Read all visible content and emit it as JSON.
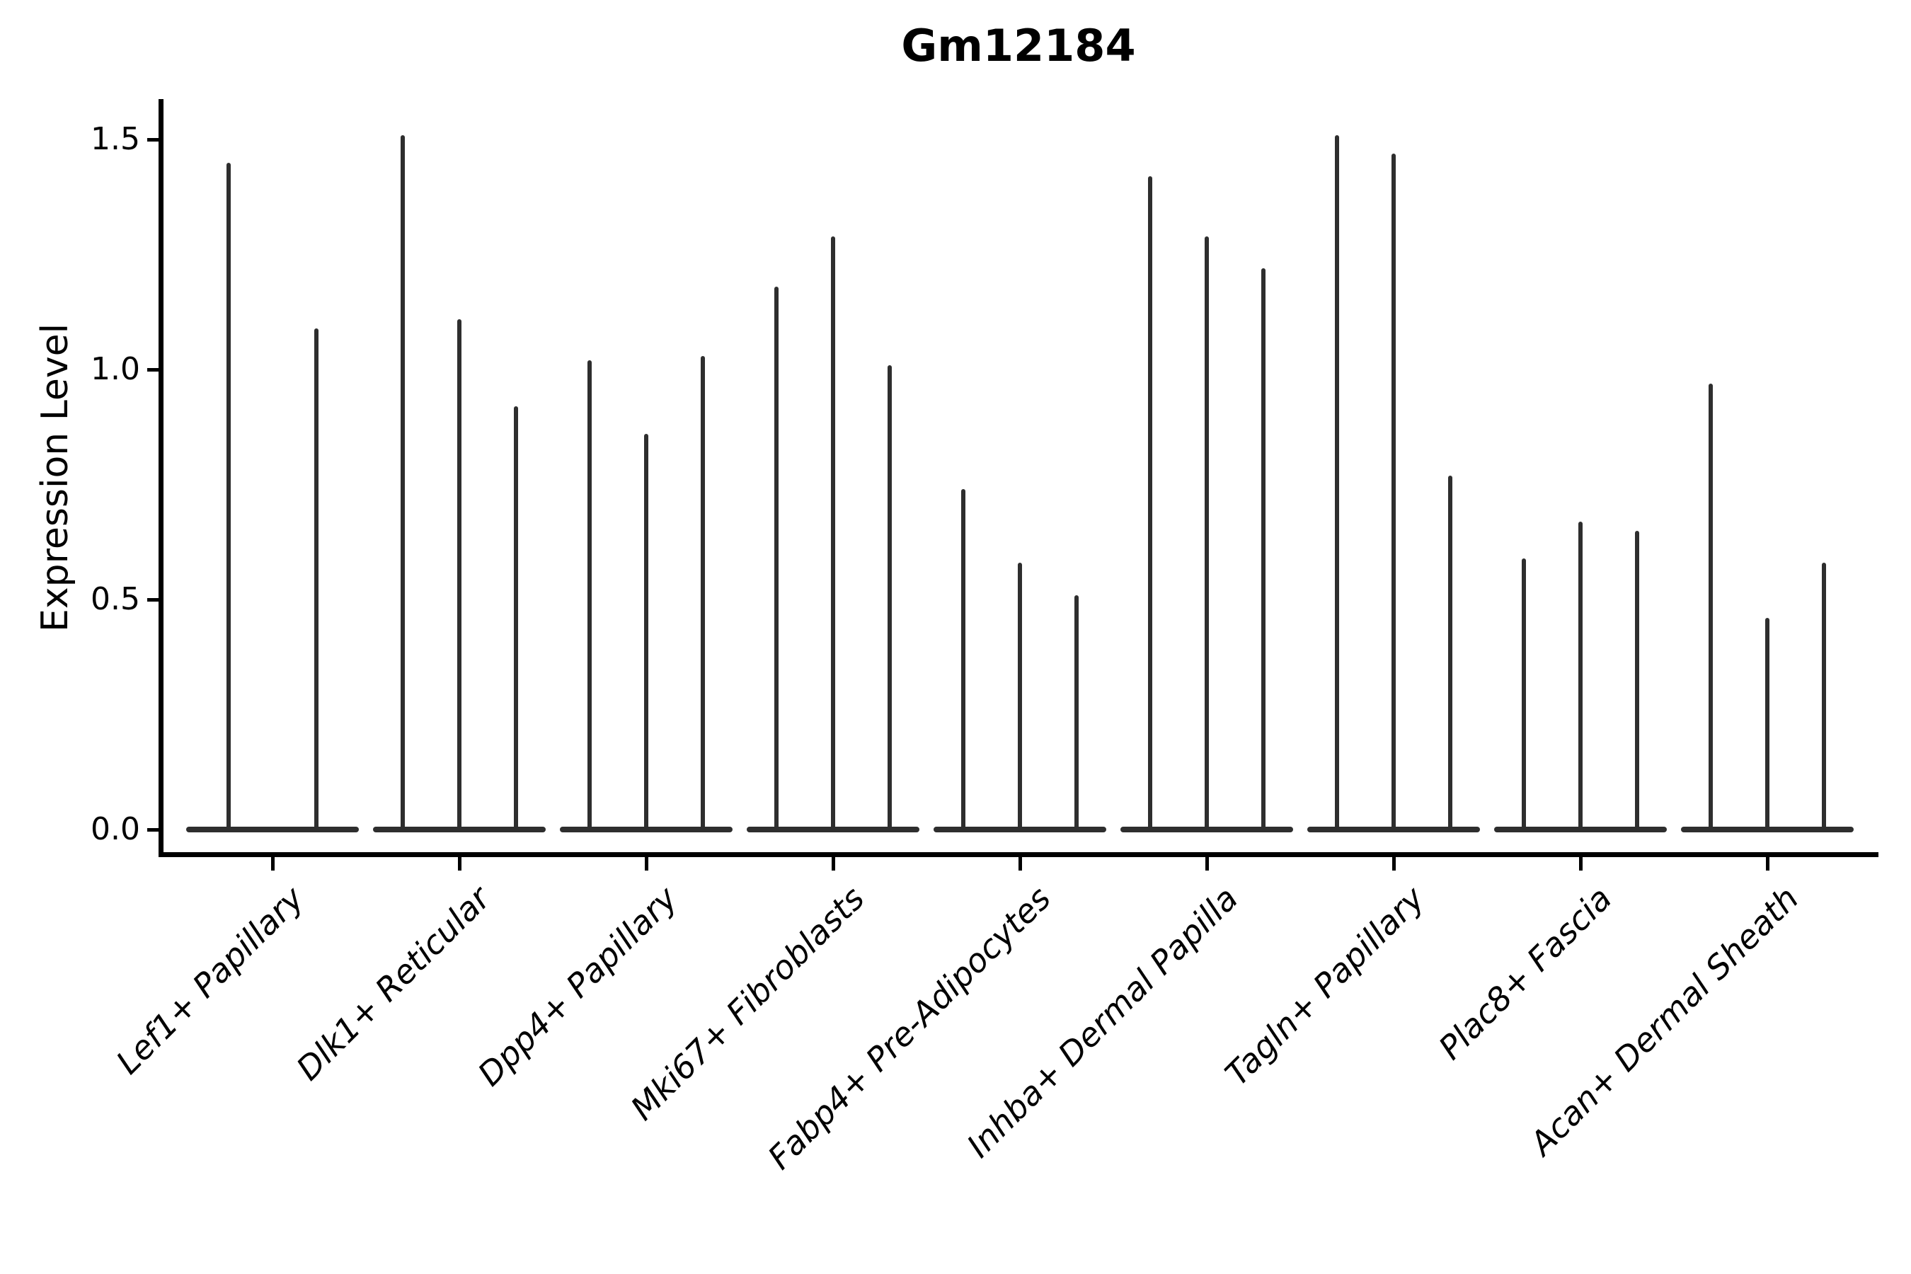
{
  "page": {
    "background": "#ffffff"
  },
  "chart_data": {
    "type": "violin",
    "title": "Gm12184",
    "xlabel": "",
    "ylabel": "Expression Level",
    "yticks": [
      {
        "value": 0.0,
        "label": "0.0"
      },
      {
        "value": 0.5,
        "label": "0.5"
      },
      {
        "value": 1.0,
        "label": "1.0"
      },
      {
        "value": 1.5,
        "label": "1.5"
      }
    ],
    "ylim": [
      -0.06,
      1.59
    ],
    "grid": false,
    "legend_position": "none",
    "violin_color": "#2e2e2e",
    "axis_color": "#000000",
    "categories": [
      "Lef1+ Papillary",
      "Dlk1+ Reticular",
      "Dpp4+ Papillary",
      "Mki67+ Fibroblasts",
      "Fabp4+ Pre-Adipocytes",
      "Inhba+ Dermal Papilla",
      "Tagln+ Papillary",
      "Plac8+ Fascia",
      "Acan+ Dermal Sheath"
    ],
    "groups": [
      {
        "category": "Lef1+ Papillary",
        "violin_max_values": [
          1.45,
          1.09
        ]
      },
      {
        "category": "Dlk1+ Reticular",
        "violin_max_values": [
          1.51,
          1.11,
          0.92
        ]
      },
      {
        "category": "Dpp4+ Papillary",
        "violin_max_values": [
          1.02,
          0.86,
          1.03
        ]
      },
      {
        "category": "Mki67+ Fibroblasts",
        "violin_max_values": [
          1.18,
          1.29,
          1.01
        ]
      },
      {
        "category": "Fabp4+ Pre-Adipocytes",
        "violin_max_values": [
          0.74,
          0.58,
          0.51
        ]
      },
      {
        "category": "Inhba+ Dermal Papilla",
        "violin_max_values": [
          1.42,
          1.29,
          1.22
        ]
      },
      {
        "category": "Tagln+ Papillary",
        "violin_max_values": [
          1.51,
          1.47,
          0.77
        ]
      },
      {
        "category": "Plac8+ Fascia",
        "violin_max_values": [
          0.59,
          0.67,
          0.65
        ]
      },
      {
        "category": "Acan+ Dermal Sheath",
        "violin_max_values": [
          0.97,
          0.46,
          0.58
        ]
      }
    ],
    "description": "Violin plot of Gm12184 expression; violins are extremely thin spikes (most cells at 0) with a flattened baseline lens at 0 for each group of 2-3 violins per cell-type category."
  }
}
